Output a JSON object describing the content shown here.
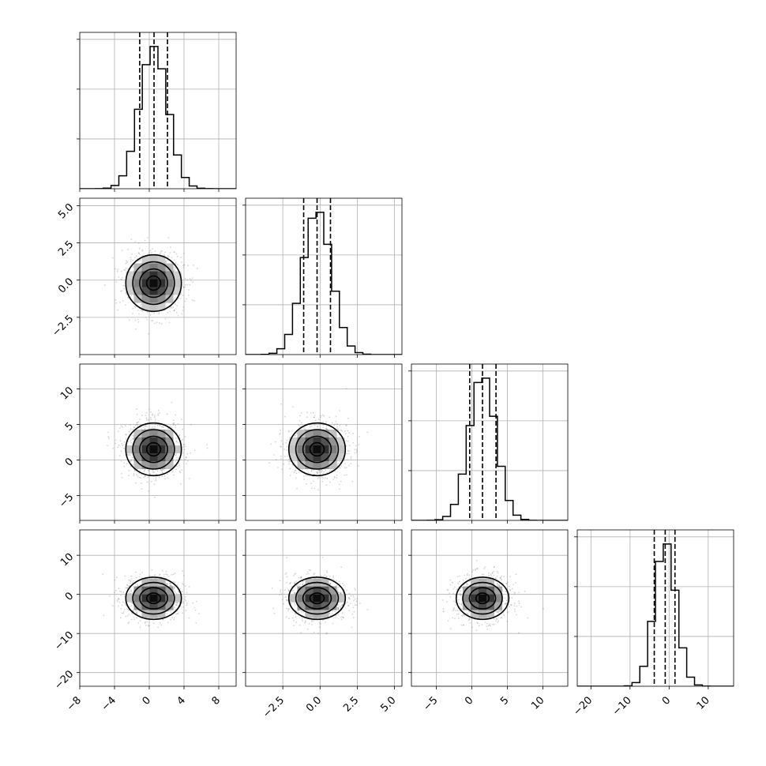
{
  "chart_data": {
    "type": "corner",
    "params": [
      {
        "label": "",
        "mean": 0.5,
        "sd": 1.6,
        "range": [
          -8,
          10
        ],
        "ticks": [
          -8,
          -4,
          0,
          4,
          8
        ],
        "tick_labels": [
          "−8",
          "−4",
          "0",
          "4",
          "8"
        ],
        "quantiles": [
          -1.1,
          0.55,
          2.1
        ]
      },
      {
        "label": "",
        "mean": -0.2,
        "sd": 0.95,
        "range": [
          -5.0,
          5.5
        ],
        "ticks": [
          -2.5,
          0.0,
          2.5,
          5.0
        ],
        "tick_labels": [
          "−2.5",
          "0.0",
          "2.5",
          "5.0"
        ],
        "quantiles": [
          -1.1,
          -0.2,
          0.7
        ]
      },
      {
        "label": "",
        "mean": 1.5,
        "sd": 1.85,
        "range": [
          -8.5,
          13.5
        ],
        "ticks": [
          -5,
          0,
          5,
          10
        ],
        "tick_labels": [
          "−5",
          "0",
          "5",
          "10"
        ],
        "quantiles": [
          -0.3,
          1.5,
          3.4
        ]
      },
      {
        "label": "",
        "mean": -1.0,
        "sd": 2.7,
        "range": [
          -23.5,
          16.5
        ],
        "ticks": [
          -20,
          -10,
          0,
          10
        ],
        "tick_labels": [
          "−20",
          "−10",
          "0",
          "10"
        ],
        "quantiles": [
          -3.8,
          -1.0,
          1.5
        ]
      }
    ],
    "correlations": [
      [
        1,
        0,
        0,
        0
      ],
      [
        0,
        1,
        0,
        0
      ],
      [
        0,
        0,
        1,
        0
      ],
      [
        0,
        0,
        0,
        1
      ]
    ],
    "hist_bins": 20,
    "quantile_levels": [
      0.16,
      0.5,
      0.84
    ],
    "contour_sigma_levels": [
      0.5,
      1.0,
      1.5,
      2.0
    ],
    "grid": true,
    "colors": {
      "line": "#000000",
      "points": "#777777",
      "grid": "#b0b0b0"
    }
  }
}
